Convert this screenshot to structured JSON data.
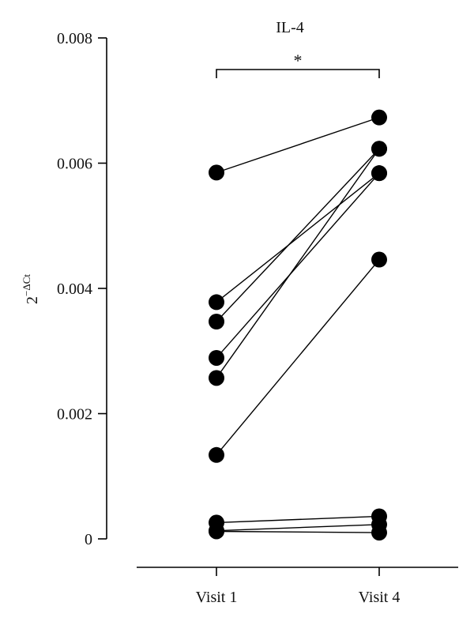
{
  "chart_data": {
    "type": "scatter",
    "title": "IL-4",
    "ylabel": {
      "base": "2",
      "superscript": "−ΔCt"
    },
    "xlabel": "",
    "categories": [
      "Visit 1",
      "Visit 4"
    ],
    "yticks": [
      "0",
      "0.002",
      "0.004",
      "0.006",
      "0.008"
    ],
    "ytick_values": [
      0,
      0.002,
      0.004,
      0.006,
      0.008
    ],
    "ylim": [
      0,
      0.008
    ],
    "significance": {
      "label": "*",
      "between": [
        "Visit 1",
        "Visit 4"
      ]
    },
    "pairs": [
      {
        "visit1": 0.00585,
        "visit4": 0.00673
      },
      {
        "visit1": 0.00378,
        "visit4": 0.00584
      },
      {
        "visit1": 0.00347,
        "visit4": 0.00623
      },
      {
        "visit1": 0.00289,
        "visit4": 0.00584
      },
      {
        "visit1": 0.00257,
        "visit4": 0.00623
      },
      {
        "visit1": 0.00134,
        "visit4": 0.00446
      },
      {
        "visit1": 0.00026,
        "visit4": 0.00036
      },
      {
        "visit1": 0.00013,
        "visit4": 0.00023
      },
      {
        "visit1": 0.00012,
        "visit4": 0.0001
      }
    ],
    "grid": false,
    "legend": "none"
  }
}
